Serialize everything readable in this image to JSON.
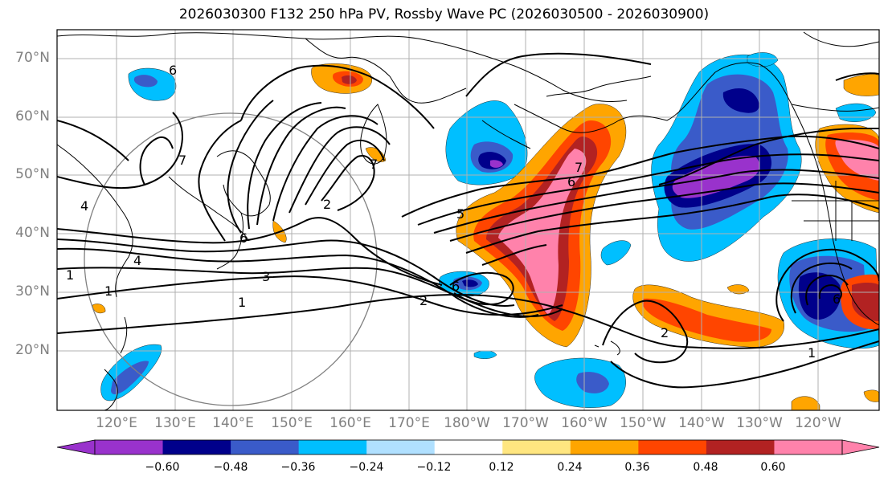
{
  "title": "2026030300 F132 250 hPa PV, Rossby Wave PC (2026030500 - 2026030900)",
  "axes": {
    "lat_labels": [
      "70°N",
      "60°N",
      "50°N",
      "40°N",
      "30°N",
      "20°N"
    ],
    "lon_labels": [
      "120°E",
      "130°E",
      "140°E",
      "150°E",
      "160°E",
      "170°E",
      "180°W",
      "170°W",
      "160°W",
      "150°W",
      "140°W",
      "130°W",
      "120°W"
    ]
  },
  "colorbar": {
    "ticks": [
      "−0.60",
      "−0.48",
      "−0.36",
      "−0.24",
      "−0.12",
      "0.12",
      "0.24",
      "0.36",
      "0.48",
      "0.60"
    ],
    "colors": [
      "#9932CC",
      "#00008B",
      "#3A5BC9",
      "#00BFFF",
      "#B0E0FF",
      "#FFFFFF",
      "#FFE680",
      "#FFA500",
      "#FF4500",
      "#B22222",
      "#FF82AB",
      "#FF82AB"
    ]
  },
  "contour_labels": [
    "6",
    "7",
    "4",
    "1",
    "6",
    "4",
    "1",
    "3",
    "2",
    "7",
    "1",
    "5",
    "6",
    "2",
    "7",
    "6",
    "1",
    "2",
    "6"
  ],
  "colors": {
    "land_edge": "#000000",
    "grid": "#b0b0b0",
    "contour": "#000000",
    "circle": "#808080"
  }
}
